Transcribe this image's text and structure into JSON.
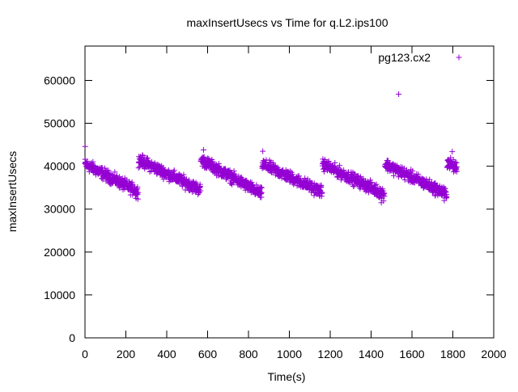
{
  "chart_data": {
    "type": "scatter",
    "title": "maxInsertUsecs vs Time for q.L2.ips100",
    "xlabel": "Time(s)",
    "ylabel": "maxInsertUsecs",
    "xlim": [
      0,
      2000
    ],
    "ylim": [
      0,
      68000
    ],
    "x_ticks": [
      0,
      200,
      400,
      600,
      800,
      1000,
      1200,
      1400,
      1600,
      1800,
      2000
    ],
    "y_ticks": [
      0,
      10000,
      20000,
      30000,
      40000,
      50000,
      60000
    ],
    "x_tick_labels": [
      "0",
      "200",
      "400",
      "600",
      "800",
      "1000",
      "1200",
      "1400",
      "1600",
      "1800",
      "2000"
    ],
    "y_tick_labels": [
      "0",
      "10000",
      "20000",
      "30000",
      "40000",
      "50000",
      "60000"
    ],
    "legend_position": "top-right",
    "grid": false,
    "marker": "plus",
    "series": [
      {
        "name": "pg123.cx2",
        "color": "#9400d3",
        "segments": [
          {
            "x_start": 0,
            "x_end": 260,
            "y_start": 40500,
            "y_end": 34000
          },
          {
            "x_start": 262,
            "x_end": 565,
            "y_start": 41500,
            "y_end": 34500
          },
          {
            "x_start": 567,
            "x_end": 865,
            "y_start": 41500,
            "y_end": 33500
          },
          {
            "x_start": 867,
            "x_end": 1160,
            "y_start": 40500,
            "y_end": 34000
          },
          {
            "x_start": 1162,
            "x_end": 1465,
            "y_start": 40500,
            "y_end": 33500
          },
          {
            "x_start": 1467,
            "x_end": 1770,
            "y_start": 40500,
            "y_end": 33500
          },
          {
            "x_start": 1772,
            "x_end": 1820,
            "y_start": 41000,
            "y_end": 39500
          }
        ],
        "spread": 2000,
        "points_per_second": 1,
        "outliers": [
          {
            "x": 1535,
            "y": 56800
          },
          {
            "x": 1797,
            "y": 43400
          },
          {
            "x": 580,
            "y": 43800
          },
          {
            "x": 870,
            "y": 43500
          },
          {
            "x": 1,
            "y": 44600
          },
          {
            "x": 1758,
            "y": 32000
          },
          {
            "x": 250,
            "y": 32500
          },
          {
            "x": 1450,
            "y": 31500
          }
        ]
      }
    ]
  }
}
